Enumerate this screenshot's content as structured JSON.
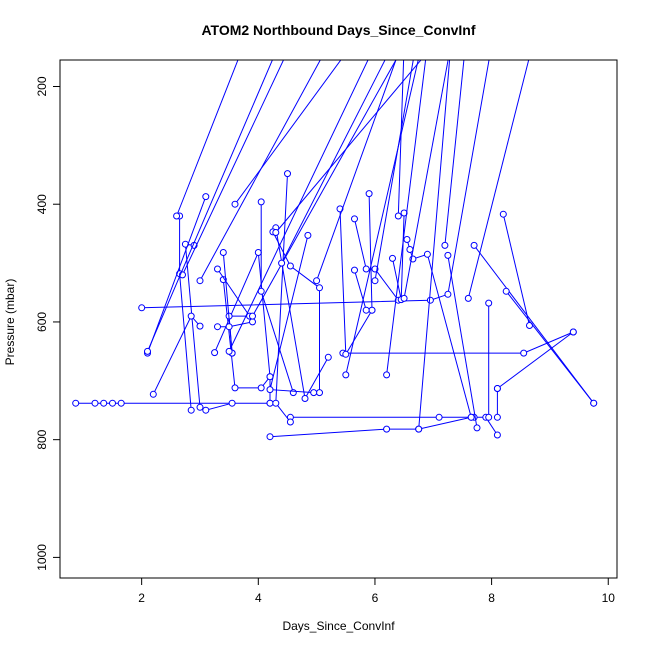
{
  "chart_data": {
    "type": "scatter",
    "title": "ATOM2 Northbound Days_Since_ConvInf",
    "xlabel": "Days_Since_ConvInf",
    "ylabel": "Pressure (mbar)",
    "xlim": [
      0.6,
      10.15
    ],
    "ylim": [
      1035,
      155
    ],
    "y_reversed": true,
    "grid": false,
    "legend": "none",
    "x_ticks": [
      2,
      4,
      6,
      8,
      10
    ],
    "x_tick_labels": [
      "2",
      "4",
      "6",
      "8",
      "10"
    ],
    "y_ticks": [
      200,
      400,
      600,
      800,
      1000
    ],
    "y_tick_labels": [
      "200",
      "400",
      "600",
      "800",
      "1000"
    ],
    "series_color": "#0000ff",
    "series": [
      {
        "points": [
          [
            0.87,
            738
          ],
          [
            1.2,
            738
          ],
          [
            1.35,
            738
          ],
          [
            1.5,
            738
          ],
          [
            1.65,
            738
          ],
          [
            4.2,
            738
          ]
        ]
      },
      {
        "points": [
          [
            4.2,
            795
          ],
          [
            6.2,
            782
          ],
          [
            6.75,
            782
          ],
          [
            7.65,
            762
          ]
        ]
      },
      {
        "points": [
          [
            4.55,
            762
          ],
          [
            7.1,
            762
          ],
          [
            7.7,
            762
          ],
          [
            7.9,
            762
          ],
          [
            8.1,
            792
          ]
        ]
      },
      {
        "points": [
          [
            5.45,
            653
          ],
          [
            8.55,
            653
          ],
          [
            9.4,
            617
          ]
        ]
      },
      {
        "points": [
          [
            2.0,
            576
          ],
          [
            6.95,
            563
          ],
          [
            7.25,
            553
          ],
          [
            8.0,
            130
          ]
        ]
      },
      {
        "points": [
          [
            8.2,
            417
          ],
          [
            8.65,
            606
          ]
        ]
      },
      {
        "points": [
          [
            7.7,
            470
          ],
          [
            9.75,
            738
          ]
        ]
      },
      {
        "points": [
          [
            8.25,
            548
          ],
          [
            9.75,
            738
          ]
        ]
      },
      {
        "points": [
          [
            7.95,
            568
          ],
          [
            7.95,
            762
          ]
        ]
      },
      {
        "points": [
          [
            8.1,
            713
          ],
          [
            8.1,
            762
          ]
        ]
      },
      {
        "points": [
          [
            8.1,
            713
          ],
          [
            9.4,
            617
          ]
        ]
      },
      {
        "points": [
          [
            2.65,
            420
          ],
          [
            2.65,
            518
          ],
          [
            2.85,
            750
          ]
        ]
      },
      {
        "points": [
          [
            2.9,
            470
          ],
          [
            2.75,
            468
          ],
          [
            3.0,
            745
          ],
          [
            3.1,
            750
          ],
          [
            3.55,
            738
          ]
        ]
      },
      {
        "points": [
          [
            2.2,
            723
          ],
          [
            2.85,
            590
          ],
          [
            3.0,
            607
          ]
        ]
      },
      {
        "points": [
          [
            2.1,
            653
          ],
          [
            3.1,
            387
          ]
        ]
      },
      {
        "points": [
          [
            3.25,
            652
          ],
          [
            4.0,
            482
          ],
          [
            4.2,
            693
          ],
          [
            4.2,
            738
          ]
        ]
      },
      {
        "points": [
          [
            3.4,
            528
          ],
          [
            3.6,
            712
          ],
          [
            4.05,
            712
          ],
          [
            4.2,
            693
          ]
        ]
      },
      {
        "points": [
          [
            3.3,
            510
          ],
          [
            3.85,
            590
          ],
          [
            3.5,
            590
          ],
          [
            3.55,
            653
          ]
        ]
      },
      {
        "points": [
          [
            3.4,
            482
          ],
          [
            3.55,
            653
          ]
        ]
      },
      {
        "points": [
          [
            3.9,
            600
          ],
          [
            3.5,
            608
          ],
          [
            3.3,
            608
          ]
        ]
      },
      {
        "points": [
          [
            4.05,
            396
          ],
          [
            4.05,
            548
          ],
          [
            4.6,
            720
          ]
        ]
      },
      {
        "points": [
          [
            4.3,
            440
          ],
          [
            4.8,
            730
          ],
          [
            5.2,
            660
          ]
        ]
      },
      {
        "points": [
          [
            4.25,
            447
          ],
          [
            4.55,
            505
          ],
          [
            5.05,
            542
          ],
          [
            5.05,
            720
          ]
        ]
      },
      {
        "points": [
          [
            4.85,
            453
          ],
          [
            4.2,
            715
          ],
          [
            4.95,
            720
          ]
        ]
      },
      {
        "points": [
          [
            4.5,
            348
          ],
          [
            4.3,
            738
          ],
          [
            4.55,
            770
          ]
        ]
      },
      {
        "points": [
          [
            5.4,
            408
          ],
          [
            5.5,
            655
          ],
          [
            5.95,
            580
          ]
        ]
      },
      {
        "points": [
          [
            5.65,
            425
          ],
          [
            5.85,
            510
          ],
          [
            6.0,
            510
          ],
          [
            6.4,
            563
          ]
        ]
      },
      {
        "points": [
          [
            5.9,
            382
          ],
          [
            5.95,
            580
          ]
        ]
      },
      {
        "points": [
          [
            5.65,
            512
          ],
          [
            5.85,
            580
          ]
        ]
      },
      {
        "points": [
          [
            6.3,
            492
          ],
          [
            6.45,
            562
          ],
          [
            6.5,
            415
          ]
        ]
      },
      {
        "points": [
          [
            6.55,
            460
          ],
          [
            6.6,
            477
          ],
          [
            6.65,
            493
          ],
          [
            6.9,
            485
          ],
          [
            7.65,
            762
          ]
        ]
      },
      {
        "points": [
          [
            7.25,
            487
          ],
          [
            7.75,
            780
          ]
        ]
      },
      {
        "points": [
          [
            6.75,
            782
          ],
          [
            7.3,
            130
          ]
        ]
      },
      {
        "points": [
          [
            2.7,
            520
          ],
          [
            4.55,
            130
          ]
        ]
      },
      {
        "points": [
          [
            3.0,
            530
          ],
          [
            5.2,
            130
          ]
        ]
      },
      {
        "points": [
          [
            3.5,
            650
          ],
          [
            6.0,
            130
          ]
        ]
      },
      {
        "points": [
          [
            3.9,
            590
          ],
          [
            6.5,
            130
          ]
        ]
      },
      {
        "points": [
          [
            5.5,
            690
          ],
          [
            6.8,
            130
          ]
        ]
      },
      {
        "points": [
          [
            6.2,
            690
          ],
          [
            6.9,
            130
          ]
        ]
      },
      {
        "points": [
          [
            2.6,
            420
          ],
          [
            3.75,
            130
          ]
        ]
      },
      {
        "points": [
          [
            3.6,
            400
          ],
          [
            5.6,
            130
          ]
        ]
      },
      {
        "points": [
          [
            4.4,
            500
          ],
          [
            6.3,
            130
          ]
        ]
      },
      {
        "points": [
          [
            5.0,
            530
          ],
          [
            6.45,
            130
          ]
        ]
      },
      {
        "points": [
          [
            6.0,
            530
          ],
          [
            6.7,
            130
          ]
        ]
      },
      {
        "points": [
          [
            7.6,
            560
          ],
          [
            8.7,
            130
          ]
        ]
      },
      {
        "points": [
          [
            7.2,
            470
          ],
          [
            7.55,
            130
          ]
        ]
      },
      {
        "points": [
          [
            2.1,
            650
          ],
          [
            4.35,
            130
          ]
        ]
      },
      {
        "points": [
          [
            4.3,
            448
          ],
          [
            7.0,
            130
          ]
        ]
      },
      {
        "points": [
          [
            6.5,
            560
          ],
          [
            7.3,
            130
          ]
        ]
      },
      {
        "points": [
          [
            6.4,
            420
          ],
          [
            6.5,
            130
          ]
        ]
      }
    ]
  }
}
